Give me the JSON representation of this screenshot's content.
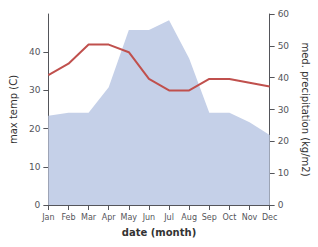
{
  "chart_data": {
    "type": "line",
    "categories": [
      "Jan",
      "Feb",
      "Mar",
      "Apr",
      "May",
      "Jun",
      "Jul",
      "Aug",
      "Sep",
      "Oct",
      "Nov",
      "Dec"
    ],
    "xlabel": "date (month)",
    "ylabel": "max temp (C)",
    "y2label": "med. precipitation (kg/m2)",
    "ylim": [
      0,
      50
    ],
    "yticks": [
      0,
      10,
      20,
      30,
      40
    ],
    "y2lim": [
      0,
      60
    ],
    "y2ticks": [
      0,
      10,
      20,
      30,
      40,
      50,
      60
    ],
    "grid": false,
    "series": [
      {
        "type": "area",
        "axis": "y2",
        "color": "#c5d0e8",
        "values": [
          28,
          29,
          29,
          37,
          55,
          55,
          58,
          46,
          29,
          29,
          26,
          22
        ]
      },
      {
        "type": "line",
        "color": "#c0504d",
        "values": [
          34,
          37,
          42,
          42,
          40,
          33,
          30,
          30,
          33,
          33,
          32,
          31
        ]
      }
    ]
  }
}
